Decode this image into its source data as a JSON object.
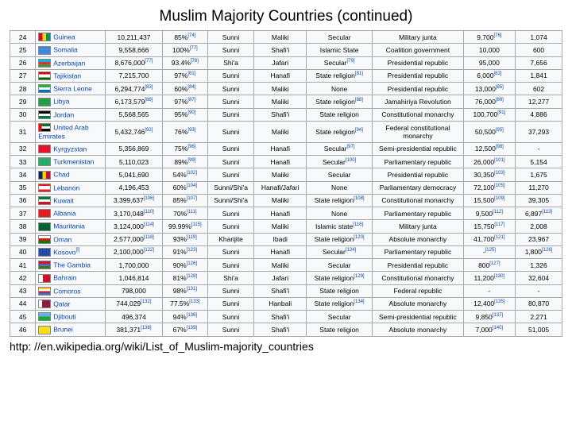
{
  "title": "Muslim Majority Countries (continued)",
  "source_url": "http: //en.wikipedia.org/wiki/List_of_Muslim-majority_countries",
  "flag_colors": {
    "Guinea": "linear-gradient(90deg,#ce1126 33%,#fcd116 33%,#fcd116 66%,#009460 66%)",
    "Somalia": "#4189dd",
    "Azerbaijan": "linear-gradient(#00b9e4 33%,#ed2939 33%,#ed2939 66%,#3f9c35 66%)",
    "Tajikistan": "linear-gradient(#cc0000 30%,#fff 30%,#fff 70%,#006600 70%)",
    "Sierra Leone": "linear-gradient(#1eb53a 33%,#fff 33%,#fff 66%,#0072c6 66%)",
    "Libya": "#239e46",
    "Jordan": "linear-gradient(#000 33%,#fff 33%,#fff 66%,#007a3d 66%)",
    "United Arab Emirates": "linear-gradient(90deg,#ff0000 25%,transparent 25%),linear-gradient(#00732f 33%,#fff 33%,#fff 66%,#000 66%)",
    "Kyrgyzstan": "#e8112d",
    "Turkmenistan": "#28ae66",
    "Chad": "linear-gradient(90deg,#002664 33%,#fecb00 33%,#fecb00 66%,#c60c30 66%)",
    "Lebanon": "linear-gradient(#ed1c24 25%,#fff 25%,#fff 75%,#ed1c24 75%)",
    "Kuwait": "linear-gradient(#007a3d 33%,#fff 33%,#fff 66%,#ce1126 66%)",
    "Albania": "#e41e20",
    "Mauritania": "#006233",
    "Oman": "linear-gradient(#fff 33%,#db161b 33%,#db161b 66%,#008000 66%)",
    "Kosovo": "#244aa5",
    "The Gambia": "linear-gradient(#ce1126 33%,#fff 33%,#fff 38%,#0c1c8c 38%,#0c1c8c 62%,#fff 62%,#fff 67%,#3a7728 67%)",
    "Bahrain": "linear-gradient(90deg,#fff 35%,#ce1126 35%)",
    "Comoros": "linear-gradient(#ffc61e 25%,#fff 25%,#fff 50%,#ce1126 50%,#ce1126 75%,#3a75c4 75%)",
    "Qatar": "linear-gradient(90deg,#fff 30%,#8d1b3d 30%)",
    "Djibouti": "linear-gradient(#6ab2e7 50%,#12ad2b 50%)",
    "Brunei": "#f7e017"
  },
  "rows": [
    {
      "n": "24",
      "c": "Guinea",
      "pop": "10,211,437",
      "pct": "85%",
      "pref": "[74]",
      "b": "Sunni",
      "s": "Maliki",
      "r": "Secular",
      "g": "Military junta",
      "v1": "9,700",
      "v1r": "[76]",
      "v2": "1,074"
    },
    {
      "n": "25",
      "c": "Somalia",
      "pop": "9,558,666",
      "pct": "100%",
      "pref": "[77]",
      "b": "Sunni",
      "s": "Shafi'i",
      "r": "Islamic State",
      "g": "Coalition government",
      "v1": "10,000",
      "v2": "600"
    },
    {
      "n": "26",
      "c": "Azerbaijan",
      "pop": "8,676,000",
      "popr": "[77]",
      "pct": "93.4%",
      "pref": "[78]",
      "b": "Shi'a",
      "s": "Jafari",
      "r": "Secular",
      "rref": "[79]",
      "g": "Presidential republic",
      "v1": "95,000",
      "v2": "7,656"
    },
    {
      "n": "27",
      "c": "Tajikistan",
      "pop": "7,215,700",
      "pct": "97%",
      "pref": "[81]",
      "b": "Sunni",
      "s": "Hanafi",
      "r": "State religion",
      "rref": "[81]",
      "g": "Presidential republic",
      "v1": "6,000",
      "v1r": "[82]",
      "v2": "1,841"
    },
    {
      "n": "28",
      "c": "Sierra Leone",
      "pop": "6,294,774",
      "popr": "[83]",
      "pct": "60%",
      "pref": "[84]",
      "b": "Sunni",
      "s": "Maliki",
      "r": "None",
      "g": "Presidential republic",
      "v1": "13,000",
      "v1r": "[85]",
      "v2": "602"
    },
    {
      "n": "29",
      "c": "Libya",
      "pop": "6,173,579",
      "popr": "[86]",
      "pct": "97%",
      "pref": "[87]",
      "b": "Sunni",
      "s": "Maliki",
      "r": "State religion",
      "rref": "[88]",
      "g": "Jamahiriya Revolution",
      "v1": "76,000",
      "v1r": "[89]",
      "v2": "12,277"
    },
    {
      "n": "30",
      "c": "Jordan",
      "pop": "5,568,565",
      "pct": "95%",
      "pref": "[90]",
      "b": "Sunni",
      "s": "Shafi'i",
      "r": "State religion",
      "g": "Constitutional monarchy",
      "v1": "100,700",
      "v1r": "[91]",
      "v2": "4,886"
    },
    {
      "n": "31",
      "c": "United Arab Emirates",
      "pop": "5,432,746",
      "popr": "[92]",
      "pct": "76%",
      "pref": "[93]",
      "b": "Sunni",
      "s": "Maliki",
      "r": "State religion",
      "rref": "[94]",
      "g": "Federal constitutional monarchy",
      "v1": "50,500",
      "v1r": "[95]",
      "v2": "37,293"
    },
    {
      "n": "32",
      "c": "Kyrgyzstan",
      "pop": "5,356,869",
      "pct": "75%",
      "pref": "[96]",
      "b": "Sunni",
      "s": "Hanafi",
      "r": "Secular",
      "rref": "[97]",
      "g": "Semi-presidential republic",
      "v1": "12,500",
      "v1r": "[98]",
      "v2": "-"
    },
    {
      "n": "33",
      "c": "Turkmenistan",
      "pop": "5,110,023",
      "pct": "89%",
      "pref": "[99]",
      "b": "Sunni",
      "s": "Hanafi",
      "r": "Secular",
      "rref": "[100]",
      "g": "Parliamentary republic",
      "v1": "26,000",
      "v1r": "[101]",
      "v2": "5,154"
    },
    {
      "n": "34",
      "c": "Chad",
      "pop": "5,041,690",
      "pct": "54%",
      "pref": "[102]",
      "b": "Sunni",
      "s": "Maliki",
      "r": "Secular",
      "g": "Presidential republic",
      "v1": "30,350",
      "v1r": "[103]",
      "v2": "1,675"
    },
    {
      "n": "35",
      "c": "Lebanon",
      "pop": "4,196,453",
      "pct": "60%",
      "pref": "[104]",
      "b": "Sunni/Shi'a",
      "s": "Hanafi/Jafari",
      "r": "None",
      "g": "Parliamentary democracy",
      "v1": "72,100",
      "v1r": "[105]",
      "v2": "11,270"
    },
    {
      "n": "36",
      "c": "Kuwait",
      "pop": "3,399,637",
      "popr": "[106]",
      "pct": "85%",
      "pref": "[107]",
      "b": "Sunni/Shi'a",
      "s": "Maliki",
      "r": "State religion",
      "rref": "[108]",
      "g": "Constitutional monarchy",
      "v1": "15,500",
      "v1r": "[109]",
      "v2": "39,305"
    },
    {
      "n": "37",
      "c": "Albania",
      "pop": "3,170,048",
      "popr": "[110]",
      "pct": "70%",
      "pref": "[111]",
      "b": "Sunni",
      "s": "Hanafi",
      "r": "None",
      "g": "Parliamentary republic",
      "v1": "9,500",
      "v1r": "[112]",
      "v2": "6,897",
      "v2r": "[113]"
    },
    {
      "n": "38",
      "c": "Mauritania",
      "pop": "3,124,000",
      "popr": "[114]",
      "pct": "99.99%",
      "pref": "[115]",
      "b": "Sunni",
      "s": "Maliki",
      "r": "Islamic state",
      "rref": "[116]",
      "g": "Military junta",
      "v1": "15,750",
      "v1r": "[117]",
      "v2": "2,008"
    },
    {
      "n": "39",
      "c": "Oman",
      "pop": "2,577,000",
      "popr": "[118]",
      "pct": "93%",
      "pref": "[119]",
      "b": "Kharijite",
      "s": "Ibadi",
      "r": "State religion",
      "rref": "[120]",
      "g": "Absolute monarchy",
      "v1": "41,700",
      "v1r": "[121]",
      "v2": "23,967"
    },
    {
      "n": "40",
      "c": "Kosovo",
      "cref": "[l]",
      "pop": "2,100,000",
      "popr": "[122]",
      "pct": "91%",
      "pref": "[123]",
      "b": "Sunni",
      "s": "Hanafi",
      "r": "Secular",
      "rref": "[124]",
      "g": "Parliamentary republic",
      "v1": "-",
      "v1r": "[125]",
      "v2": "1,800",
      "v2r": "[126]"
    },
    {
      "n": "41",
      "c": "The Gambia",
      "pop": "1,700,000",
      "pct": "90%",
      "pref": "[126]",
      "b": "Sunni",
      "s": "Maliki",
      "r": "Secular",
      "g": "Presidential republic",
      "v1": "800",
      "v1r": "[127]",
      "v2": "1,326"
    },
    {
      "n": "42",
      "c": "Bahrain",
      "pop": "1,046,814",
      "pct": "81%",
      "pref": "[128]",
      "b": "Shi'a",
      "s": "Jafari",
      "r": "State religion",
      "rref": "[129]",
      "g": "Constitutional monarchy",
      "v1": "11,200",
      "v1r": "[130]",
      "v2": "32,604"
    },
    {
      "n": "43",
      "c": "Comoros",
      "pop": "798,000",
      "pct": "98%",
      "pref": "[131]",
      "b": "Sunni",
      "s": "Shafi'i",
      "r": "State religion",
      "g": "Federal republic",
      "v1": "-",
      "v2": "-"
    },
    {
      "n": "44",
      "c": "Qatar",
      "pop": "744,029",
      "popr": "[132]",
      "pct": "77.5%",
      "pref": "[133]",
      "b": "Sunni",
      "s": "Hanbali",
      "r": "State religion",
      "rref": "[134]",
      "g": "Absolute monarchy",
      "v1": "12,400",
      "v1r": "[135]",
      "v2": "80,870"
    },
    {
      "n": "45",
      "c": "Djibouti",
      "pop": "496,374",
      "pct": "94%",
      "pref": "[136]",
      "b": "Sunni",
      "s": "Shafi'i",
      "r": "Secular",
      "g": "Semi-presidential republic",
      "v1": "9,850",
      "v1r": "[137]",
      "v2": "2,271"
    },
    {
      "n": "46",
      "c": "Brunei",
      "pop": "381,371",
      "popr": "[138]",
      "pct": "67%",
      "pref": "[139]",
      "b": "Sunni",
      "s": "Shafi'i",
      "r": "State religion",
      "g": "Absolute monarchy",
      "v1": "7,000",
      "v1r": "[140]",
      "v2": "51,005"
    }
  ]
}
